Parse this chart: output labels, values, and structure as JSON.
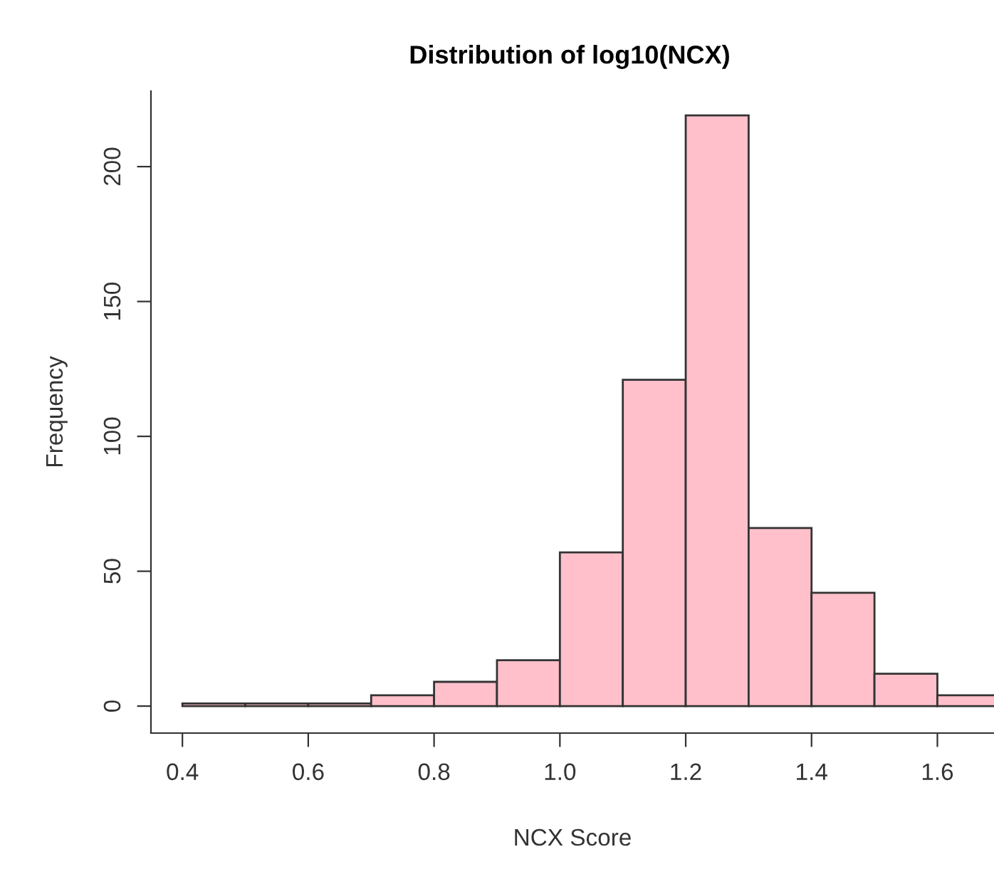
{
  "chart_data": {
    "type": "histogram",
    "title": "Distribution of log10(NCX)",
    "xlabel": "NCX Score",
    "ylabel": "Frequency",
    "bins": [
      0.4,
      0.5,
      0.6,
      0.7,
      0.8,
      0.9,
      1.0,
      1.1,
      1.2,
      1.3,
      1.4,
      1.5,
      1.6,
      1.7
    ],
    "values": [
      1,
      1,
      1,
      4,
      9,
      17,
      57,
      121,
      219,
      66,
      42,
      12,
      4
    ],
    "color": "#ffc0cb",
    "xlim": [
      0.35,
      1.69
    ],
    "xticks": [
      0.4,
      {
        "value": 0.6,
        "label": "0.6"
      },
      {
        "value": 0.8,
        "label": "0.8"
      },
      {
        "value": 1.0,
        "label": "1.0"
      },
      {
        "value": 1.2,
        "label": "1.2"
      },
      {
        "value": 1.4,
        "label": "1.4"
      },
      {
        "value": 1.6,
        "label": "1.6"
      }
    ],
    "ylim": [
      -10,
      228
    ],
    "yticks": [
      0,
      50,
      100,
      150,
      200
    ],
    "grid": false
  }
}
